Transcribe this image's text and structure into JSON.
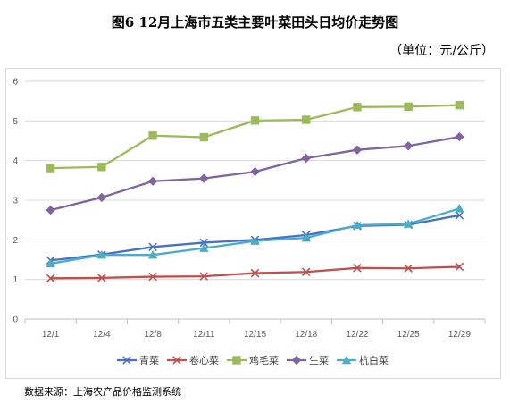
{
  "title": "图6   12月上海市五类主要叶菜田头日均价走势图",
  "unit": "（单位：元/公斤）",
  "source": "数据来源：上海农产品价格监测系统",
  "chart_data": {
    "type": "line",
    "categories": [
      "12/1",
      "12/4",
      "12/8",
      "12/11",
      "12/15",
      "12/18",
      "12/22",
      "12/25",
      "12/29"
    ],
    "ylim": [
      0,
      6
    ],
    "yticks": [
      0,
      1,
      2,
      3,
      4,
      5,
      6
    ],
    "grid": true,
    "legend_position": "bottom",
    "series": [
      {
        "name": "青菜",
        "color": "#4472c4",
        "marker": "x",
        "values": [
          1.48,
          1.63,
          1.82,
          1.93,
          2.0,
          2.12,
          2.35,
          2.38,
          2.62
        ]
      },
      {
        "name": "卷心菜",
        "color": "#c0504d",
        "marker": "x",
        "values": [
          1.03,
          1.04,
          1.07,
          1.08,
          1.16,
          1.19,
          1.29,
          1.28,
          1.32
        ]
      },
      {
        "name": "鸡毛菜",
        "color": "#9bbb59",
        "marker": "square",
        "values": [
          3.81,
          3.84,
          4.63,
          4.59,
          5.01,
          5.03,
          5.35,
          5.36,
          5.4
        ]
      },
      {
        "name": "生菜",
        "color": "#8064a2",
        "marker": "diamond",
        "values": [
          2.75,
          3.07,
          3.48,
          3.55,
          3.72,
          4.06,
          4.27,
          4.37,
          4.6
        ]
      },
      {
        "name": "杭白菜",
        "color": "#4bacc6",
        "marker": "triangle",
        "values": [
          1.4,
          1.62,
          1.62,
          1.79,
          1.97,
          2.05,
          2.37,
          2.4,
          2.79
        ]
      }
    ]
  }
}
